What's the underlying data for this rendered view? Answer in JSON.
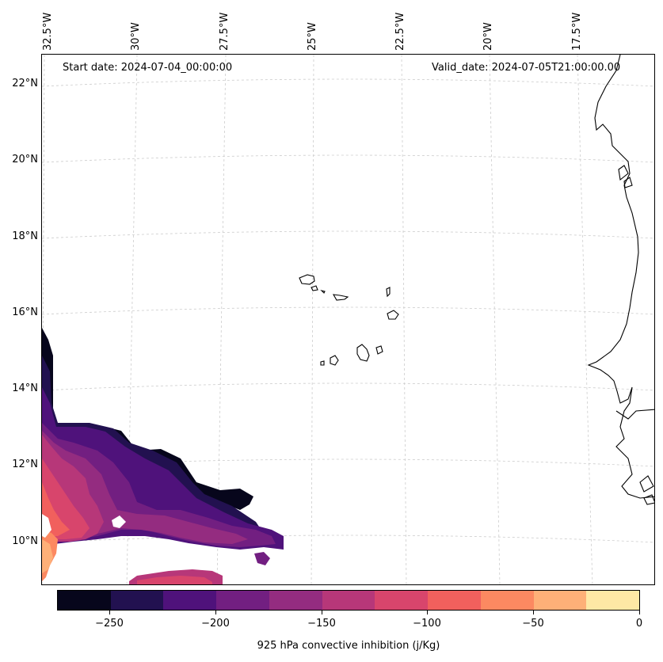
{
  "header": {
    "start_date": "Start date: 2024-07-04_00:00:00",
    "valid_date": "Valid_date: 2024-07-05T21:00:00.00"
  },
  "axes": {
    "lon_labels": [
      "32.5°W",
      "30°W",
      "27.5°W",
      "25°W",
      "22.5°W",
      "20°W",
      "17.5°W"
    ],
    "lat_labels": [
      "22°N",
      "20°N",
      "18°N",
      "16°N",
      "14°N",
      "12°N",
      "10°N"
    ]
  },
  "colorbar": {
    "label": "925 hPa convective inhibition (j/Kg)",
    "tick_labels": [
      "−250",
      "−200",
      "−150",
      "−100",
      "−50",
      "0"
    ],
    "levels": [
      -275,
      -250,
      -225,
      -200,
      -175,
      -150,
      -125,
      -100,
      -75,
      -50,
      -25,
      0
    ],
    "colors": [
      "#07061c",
      "#221150",
      "#4f127b",
      "#721f81",
      "#942c80",
      "#b73779",
      "#d8456c",
      "#f1605d",
      "#fc8961",
      "#feb078",
      "#fee8a5"
    ]
  },
  "map": {
    "variable": "925 hPa convective inhibition",
    "units": "j/Kg",
    "features": [
      "coastline",
      "cape-verde-islands",
      "west-africa-coast"
    ]
  }
}
